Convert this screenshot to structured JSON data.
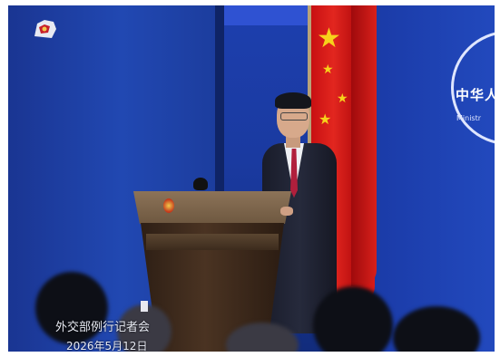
{
  "backdrop": {
    "wall_text": "中华人",
    "wall_subtext": "Ministr"
  },
  "caption": {
    "title": "外交部例行记者会",
    "date": "2026年5月12日"
  },
  "colors": {
    "wall_blue": "#1d3fae",
    "flag_red": "#e2261f",
    "star_yellow": "#f7d21b"
  }
}
